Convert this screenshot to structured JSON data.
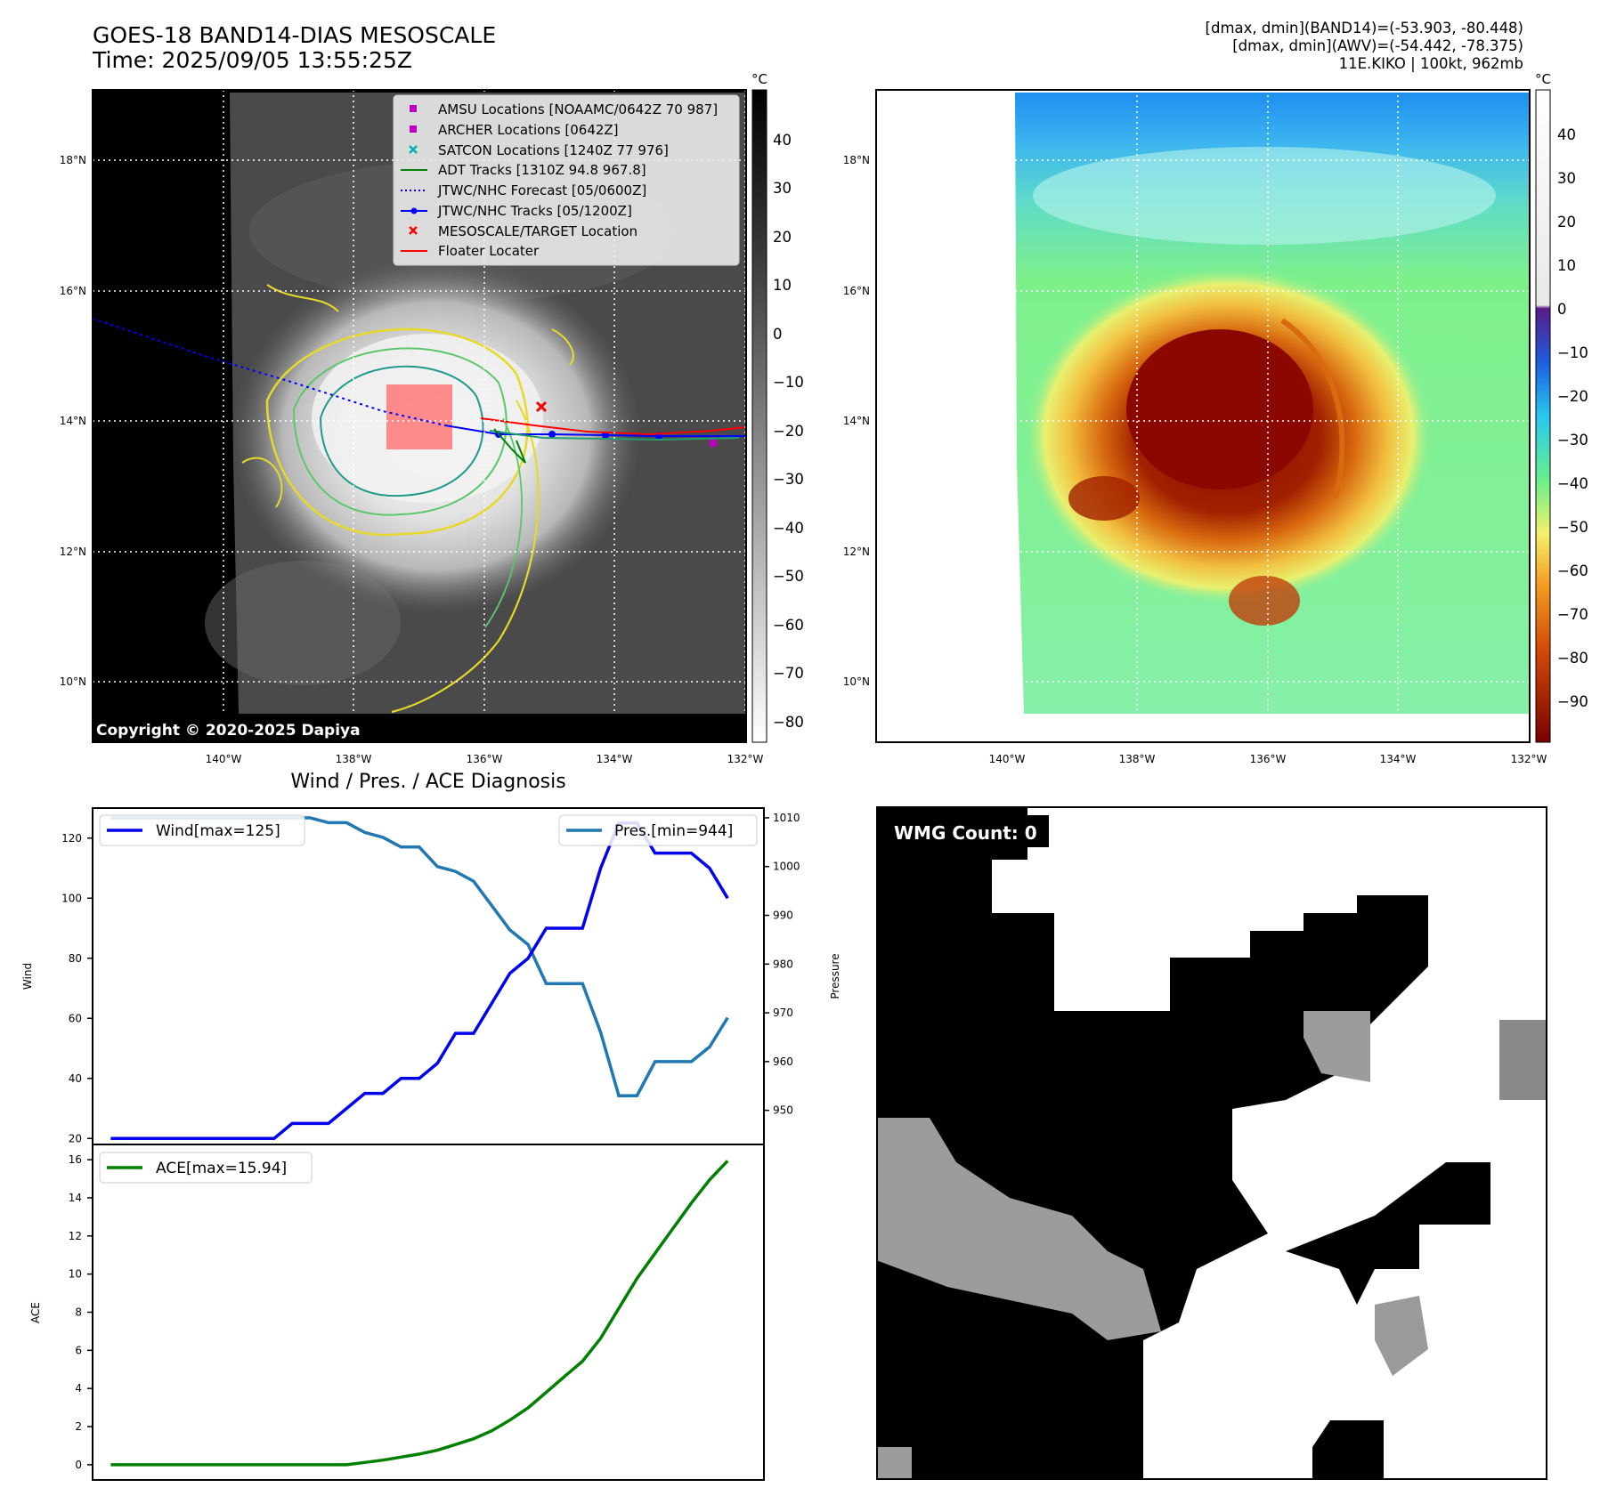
{
  "header": {
    "title_line1": "GOES-18 BAND14-DIAS MESOSCALE",
    "title_line2": "Time: 2025/09/05 13:55:25Z",
    "stats_line1": "[dmax, dmin](BAND14)=(-53.903, -80.448)",
    "stats_line2": "[dmax, dmin](AWV)=(-54.442, -78.375)",
    "stats_line3": "11E.KIKO | 100kt, 962mb"
  },
  "map_left": {
    "lat_labels": [
      "18°N",
      "16°N",
      "14°N",
      "12°N",
      "10°N"
    ],
    "lon_labels": [
      "140°W",
      "138°W",
      "136°W",
      "134°W",
      "132°W"
    ],
    "colorbar_unit": "°C",
    "colorbar_ticks": [
      "40",
      "30",
      "20",
      "10",
      "0",
      "−10",
      "−20",
      "−30",
      "−40",
      "−50",
      "−60",
      "−70",
      "−80"
    ],
    "copyright": "Copyright © 2020-2025 Dapiya",
    "legend": [
      {
        "label": "AMSU Locations [NOAAMC/0642Z 70 987]",
        "marker": "square",
        "color": "#c000c0"
      },
      {
        "label": "ARCHER Locations [0642Z]",
        "marker": "square",
        "color": "#c000c0"
      },
      {
        "label": "SATCON Locations [1240Z 77 976]",
        "marker": "x",
        "color": "#00b0b0"
      },
      {
        "label": "ADT Tracks [1310Z 94.8 967.8]",
        "marker": "line",
        "color": "#008000"
      },
      {
        "label": "JTWC/NHC Forecast [05/0600Z]",
        "marker": "dotted",
        "color": "#0000ff"
      },
      {
        "label": "JTWC/NHC Tracks [05/1200Z]",
        "marker": "line-dot",
        "color": "#0000ff"
      },
      {
        "label": "MESOSCALE/TARGET Location",
        "marker": "x",
        "color": "#ff0000"
      },
      {
        "label": "Floater Locater",
        "marker": "line",
        "color": "#ff0000"
      }
    ]
  },
  "map_right": {
    "lat_labels": [
      "18°N",
      "16°N",
      "14°N",
      "12°N",
      "10°N"
    ],
    "lon_labels": [
      "140°W",
      "138°W",
      "136°W",
      "134°W",
      "132°W"
    ],
    "colorbar_unit": "°C",
    "colorbar_ticks": [
      "40",
      "30",
      "20",
      "10",
      "0",
      "−10",
      "−20",
      "−30",
      "−40",
      "−50",
      "−60",
      "−70",
      "−80",
      "−90"
    ]
  },
  "diagnosis": {
    "title": "Wind / Pres. / ACE Diagnosis",
    "wind_axis_label": "Wind",
    "pressure_axis_label": "Pressure",
    "ace_axis_label": "ACE",
    "wind_legend": "Wind[max=125]",
    "pres_legend": "Pres.[min=944]",
    "ace_legend": "ACE[max=15.94]"
  },
  "wmg": {
    "label": "WMG Count: 0"
  },
  "colors": {
    "wind": "#0000ee",
    "pressure": "#1f77b4",
    "ace": "#008000"
  },
  "chart_data": [
    {
      "type": "line",
      "title": "Wind / Pres. / ACE Diagnosis",
      "ylabel": "Wind",
      "ylim": [
        18,
        130
      ],
      "xlim": [
        -1,
        36
      ],
      "series": [
        {
          "name": "Wind[max=125]",
          "axis": "left",
          "values": [
            20,
            20,
            20,
            20,
            20,
            20,
            20,
            20,
            20,
            20,
            25,
            25,
            25,
            30,
            35,
            35,
            40,
            40,
            45,
            55,
            55,
            65,
            75,
            80,
            90,
            90,
            90,
            110,
            125,
            125,
            115,
            115,
            115,
            110,
            100
          ]
        },
        {
          "name": "Pres.[min=944]",
          "axis": "right",
          "values": [
            1010,
            1010,
            1010,
            1010,
            1010,
            1010,
            1010,
            1010,
            1010,
            1010,
            1010,
            1010,
            1009,
            1009,
            1007,
            1006,
            1004,
            1004,
            1000,
            999,
            997,
            992,
            987,
            984,
            976,
            976,
            976,
            966,
            953,
            953,
            960,
            960,
            960,
            963,
            969
          ]
        }
      ],
      "y2label": "Pressure",
      "y2lim": [
        943,
        1012
      ],
      "yticks": [
        20,
        40,
        60,
        80,
        100,
        120
      ],
      "y2ticks": [
        950,
        960,
        970,
        980,
        990,
        1000,
        1010
      ]
    },
    {
      "type": "line",
      "ylabel": "ACE",
      "ylim": [
        -0.8,
        16.8
      ],
      "xlim": [
        -1,
        36
      ],
      "yticks": [
        0,
        2,
        4,
        6,
        8,
        10,
        12,
        14,
        16
      ],
      "series": [
        {
          "name": "ACE[max=15.94]",
          "values": [
            0,
            0,
            0,
            0,
            0,
            0,
            0,
            0,
            0,
            0,
            0,
            0,
            0,
            0,
            0.12,
            0.24,
            0.4,
            0.56,
            0.76,
            1.06,
            1.36,
            1.78,
            2.34,
            2.98,
            3.8,
            4.62,
            5.43,
            6.63,
            8.2,
            9.77,
            11.09,
            12.41,
            13.73,
            14.94,
            15.94
          ]
        }
      ]
    }
  ]
}
